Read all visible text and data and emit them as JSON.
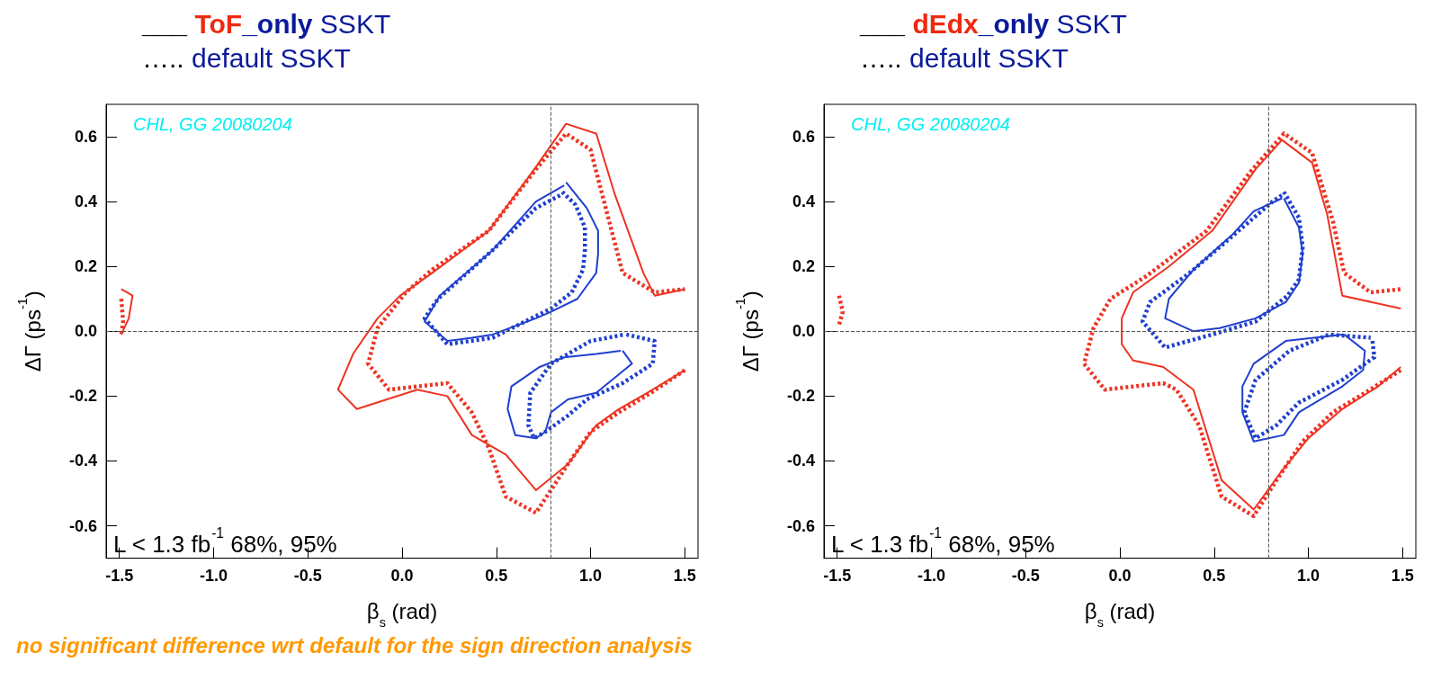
{
  "chart_data": [
    {
      "type": "line",
      "title": "___ ToF_only SSKT",
      "subtitle": "….. default SSKT",
      "xlabel": "β$_{s}$ (rad)",
      "ylabel": "ΔΓ (ps$^{-1}$)",
      "annotations": [
        "CHL, GG 20080204",
        "L < 1.3 fb$^{-1}$",
        "68%,",
        "95%",
        "no significant difference wrt default for the sign direction analysis"
      ],
      "xlim": [
        -1.57,
        1.57
      ],
      "ylim": [
        -0.7,
        0.7
      ],
      "xticks": [
        {
          "value": -1.5,
          "label": "-1.5"
        },
        {
          "value": -1,
          "label": "-1.0"
        },
        {
          "value": -0.5,
          "label": "-0.5"
        },
        {
          "value": 0,
          "label": "0.0"
        },
        {
          "value": 0.5,
          "label": "0.5"
        },
        {
          "value": 1,
          "label": "1.0"
        },
        {
          "value": 1.5,
          "label": "1.5"
        }
      ],
      "yticks": [
        -0.6,
        -0.4,
        -0.2,
        {
          "value": 0,
          "label": "0.0"
        },
        0.2,
        0.4,
        0.6
      ],
      "grid": false,
      "ref_lines": [
        {
          "axis": "x",
          "value": 0.79,
          "color": "#555555",
          "line_style": "dashed"
        },
        {
          "axis": "y",
          "value": 0,
          "color": "#555555",
          "line_style": "dashed"
        }
      ],
      "series": [
        {
          "color": "#ee3322",
          "line_style": "solid",
          "x": [
            1.5,
            1.3,
            1.15,
            1.03,
            0.88,
            0.71,
            0.55,
            0.37,
            0.24,
            0.08,
            -0.24,
            -0.34,
            -0.26,
            -0.13,
            -0.01,
            0.16,
            0.46,
            0.69,
            0.87,
            1.03,
            1.13,
            1.28,
            1.34,
            1.5
          ],
          "values": [
            -0.12,
            -0.19,
            -0.24,
            -0.29,
            -0.41,
            -0.49,
            -0.38,
            -0.32,
            -0.2,
            -0.18,
            -0.24,
            -0.18,
            -0.07,
            0.04,
            0.11,
            0.18,
            0.31,
            0.49,
            0.64,
            0.61,
            0.42,
            0.18,
            0.11,
            0.13
          ]
        },
        {
          "color": "#ee3322",
          "line_style": "dotted",
          "x": [
            1.5,
            1.32,
            1.15,
            1.0,
            0.88,
            0.71,
            0.55,
            0.46,
            0.37,
            0.24,
            -0.07,
            -0.18,
            -0.13,
            0.02,
            0.16,
            0.46,
            0.71,
            0.87,
            1.0,
            1.17,
            1.34,
            1.5
          ],
          "values": [
            -0.12,
            -0.19,
            -0.25,
            -0.31,
            -0.41,
            -0.56,
            -0.51,
            -0.36,
            -0.25,
            -0.16,
            -0.18,
            -0.1,
            0.01,
            0.12,
            0.19,
            0.31,
            0.5,
            0.61,
            0.56,
            0.18,
            0.12,
            0.13
          ]
        },
        {
          "color": "#ee3322",
          "line_style": "solid",
          "x": [
            -1.49,
            -1.43,
            -1.45,
            -1.49
          ],
          "values": [
            0.13,
            0.11,
            0.04,
            -0.01
          ]
        },
        {
          "color": "#ee3322",
          "line_style": "dotted",
          "x": [
            -1.49,
            -1.48,
            -1.49
          ],
          "values": [
            0.1,
            0.03,
            -0.01
          ]
        },
        {
          "color": "#1f3fd0",
          "line_style": "solid",
          "x": [
            0.87,
            0.98,
            1.04,
            1.04,
            1.03,
            0.93,
            0.79,
            0.71,
            0.48,
            0.37,
            0.24,
            0.12,
            0.2,
            0.48,
            0.71,
            0.86
          ],
          "values": [
            0.46,
            0.38,
            0.31,
            0.24,
            0.18,
            0.1,
            0.06,
            0.04,
            -0.01,
            -0.02,
            -0.03,
            0.03,
            0.11,
            0.25,
            0.4,
            0.45
          ]
        },
        {
          "color": "#1f3fd0",
          "line_style": "dotted",
          "x": [
            0.85,
            0.92,
            0.97,
            0.97,
            0.96,
            0.9,
            0.79,
            0.48,
            0.24,
            0.12,
            0.19,
            0.48,
            0.71,
            0.84
          ],
          "values": [
            0.43,
            0.39,
            0.32,
            0.25,
            0.19,
            0.12,
            0.07,
            -0.02,
            -0.04,
            0.04,
            0.1,
            0.25,
            0.38,
            0.42
          ]
        },
        {
          "color": "#1f3fd0",
          "line_style": "solid",
          "x": [
            1.17,
            1.22,
            1.03,
            0.88,
            0.79,
            0.76,
            0.71,
            0.6,
            0.56,
            0.58,
            0.73,
            0.86,
            1.03,
            1.16
          ],
          "values": [
            -0.06,
            -0.1,
            -0.19,
            -0.21,
            -0.25,
            -0.31,
            -0.33,
            -0.32,
            -0.24,
            -0.17,
            -0.11,
            -0.08,
            -0.07,
            -0.06
          ]
        },
        {
          "color": "#1f3fd0",
          "line_style": "dotted",
          "x": [
            1.19,
            1.34,
            1.33,
            1.17,
            0.98,
            0.88,
            0.76,
            0.7,
            0.67,
            0.68,
            0.79,
            1.0,
            1.18
          ],
          "values": [
            -0.01,
            -0.03,
            -0.1,
            -0.16,
            -0.21,
            -0.26,
            -0.31,
            -0.33,
            -0.29,
            -0.19,
            -0.1,
            -0.03,
            -0.01
          ]
        }
      ]
    },
    {
      "type": "line",
      "title": "___ dEdx_only SSKT",
      "subtitle": "….. default SSKT",
      "xlabel": "β$_{s}$ (rad)",
      "ylabel": "ΔΓ (ps$^{-1}$)",
      "annotations": [
        "CHL, GG 20080204",
        "L < 1.3 fb$^{-1}$",
        "68%,",
        "95%"
      ],
      "xlim": [
        -1.57,
        1.57
      ],
      "ylim": [
        -0.7,
        0.7
      ],
      "xticks": [
        {
          "value": -1.5,
          "label": "-1.5"
        },
        {
          "value": -1,
          "label": "-1.0"
        },
        {
          "value": -0.5,
          "label": "-0.5"
        },
        {
          "value": 0,
          "label": "0.0"
        },
        {
          "value": 0.5,
          "label": "0.5"
        },
        {
          "value": 1,
          "label": "1.0"
        },
        {
          "value": 1.5,
          "label": "1.5"
        }
      ],
      "yticks": [
        -0.6,
        -0.4,
        -0.2,
        {
          "value": 0,
          "label": "0.0"
        },
        0.2,
        0.4,
        0.6
      ],
      "grid": false,
      "ref_lines": [
        {
          "axis": "x",
          "value": 0.79,
          "color": "#555555",
          "line_style": "dashed"
        },
        {
          "axis": "y",
          "value": 0,
          "color": "#555555",
          "line_style": "dashed"
        }
      ],
      "series": [
        {
          "color": "#ee3322",
          "line_style": "solid",
          "x": [
            1.49,
            1.37,
            1.18,
            1.0,
            0.86,
            0.71,
            0.54,
            0.39,
            0.23,
            0.07,
            0.01,
            0.01,
            0.07,
            0.26,
            0.49,
            0.72,
            0.86,
            1.02,
            1.1,
            1.18,
            1.49
          ],
          "values": [
            -0.11,
            -0.17,
            -0.24,
            -0.33,
            -0.43,
            -0.55,
            -0.46,
            -0.18,
            -0.11,
            -0.09,
            -0.04,
            0.04,
            0.12,
            0.2,
            0.31,
            0.5,
            0.59,
            0.52,
            0.36,
            0.11,
            0.07
          ]
        },
        {
          "color": "#ee3322",
          "line_style": "dotted",
          "x": [
            1.49,
            1.3,
            1.13,
            0.97,
            0.83,
            0.71,
            0.54,
            0.42,
            0.3,
            0.23,
            -0.08,
            -0.19,
            -0.14,
            -0.05,
            0.14,
            0.46,
            0.69,
            0.87,
            1.02,
            1.13,
            1.19,
            1.33,
            1.49
          ],
          "values": [
            -0.12,
            -0.19,
            -0.25,
            -0.34,
            -0.46,
            -0.57,
            -0.51,
            -0.29,
            -0.18,
            -0.16,
            -0.18,
            -0.1,
            0.01,
            0.1,
            0.17,
            0.31,
            0.49,
            0.61,
            0.55,
            0.34,
            0.18,
            0.12,
            0.13
          ]
        },
        {
          "color": "#ee3322",
          "line_style": "dotted",
          "x": [
            -1.49,
            -1.47,
            -1.49
          ],
          "values": [
            0.11,
            0.06,
            0.02
          ]
        },
        {
          "color": "#1f3fd0",
          "line_style": "solid",
          "x": [
            0.87,
            0.95,
            0.97,
            0.95,
            0.88,
            0.72,
            0.53,
            0.39,
            0.24,
            0.26,
            0.39,
            0.6,
            0.71,
            0.86
          ],
          "values": [
            0.41,
            0.32,
            0.24,
            0.15,
            0.09,
            0.04,
            0.01,
            0.0,
            0.04,
            0.1,
            0.19,
            0.3,
            0.37,
            0.41
          ]
        },
        {
          "color": "#1f3fd0",
          "line_style": "dotted",
          "x": [
            0.87,
            0.95,
            0.97,
            0.95,
            0.89,
            0.72,
            0.49,
            0.24,
            0.12,
            0.16,
            0.37,
            0.63,
            0.81,
            0.86
          ],
          "values": [
            0.43,
            0.35,
            0.26,
            0.16,
            0.11,
            0.03,
            -0.01,
            -0.05,
            0.03,
            0.09,
            0.18,
            0.31,
            0.4,
            0.42
          ]
        },
        {
          "color": "#1f3fd0",
          "line_style": "solid",
          "x": [
            1.19,
            1.3,
            1.29,
            1.18,
            0.95,
            0.87,
            0.71,
            0.65,
            0.65,
            0.71,
            0.88,
            1.18
          ],
          "values": [
            -0.01,
            -0.06,
            -0.12,
            -0.17,
            -0.25,
            -0.32,
            -0.34,
            -0.25,
            -0.17,
            -0.1,
            -0.03,
            -0.01
          ]
        },
        {
          "color": "#1f3fd0",
          "line_style": "dotted",
          "x": [
            1.34,
            1.35,
            1.18,
            0.95,
            0.83,
            0.72,
            0.66,
            0.72,
            0.9,
            1.11,
            1.33
          ],
          "values": [
            -0.03,
            -0.08,
            -0.15,
            -0.22,
            -0.29,
            -0.33,
            -0.25,
            -0.15,
            -0.06,
            -0.01,
            -0.02
          ]
        }
      ]
    }
  ]
}
